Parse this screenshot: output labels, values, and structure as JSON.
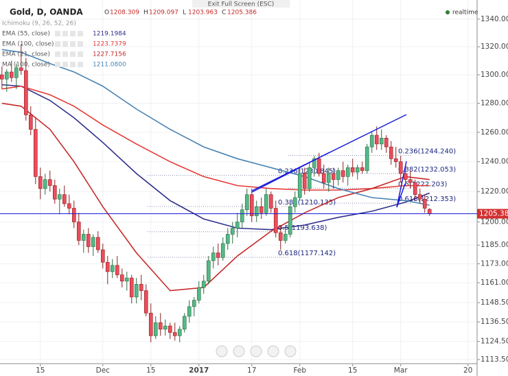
{
  "chart_data": {
    "type": "candlestick",
    "log": true,
    "grid": true,
    "title": "Gold, D, OANDA",
    "ohlc_letters": [
      "O",
      "H",
      "L",
      "C"
    ],
    "fullscreen_hint": "Exit Full Screen (ESC)",
    "status": "realtime",
    "indicator": "Ichimoku (9, 26, 52, 26)",
    "up_color": "#53b987",
    "down_color": "#eb4d5c",
    "ylim": [
      1111,
      1354
    ],
    "xlim": [
      -0.4,
      98.9
    ],
    "yticks": [
      {
        "value": 1340,
        "label": "1340.000"
      },
      {
        "value": 1320,
        "label": "1320.000"
      },
      {
        "value": 1300,
        "label": "1300.000"
      },
      {
        "value": 1280,
        "label": "1280.000"
      },
      {
        "value": 1260,
        "label": "1260.000"
      },
      {
        "value": 1240,
        "label": "1240.000"
      },
      {
        "value": 1220,
        "label": "1220.000"
      },
      {
        "value": 1200,
        "label": "1200.000"
      },
      {
        "value": 1185,
        "label": "1185.000"
      },
      {
        "value": 1173,
        "label": "1173.000"
      },
      {
        "value": 1161,
        "label": "1161.000"
      },
      {
        "value": 1148.5,
        "label": "1148.500"
      },
      {
        "value": 1136.5,
        "label": "1136.500"
      },
      {
        "value": 1124.5,
        "label": "1124.500"
      },
      {
        "value": 1113.5,
        "label": "1113.500"
      }
    ],
    "xticks": [
      {
        "value": 8,
        "label": "15"
      },
      {
        "value": 21,
        "label": "Dec"
      },
      {
        "value": 31,
        "label": "15"
      },
      {
        "value": 41,
        "label": "2017"
      },
      {
        "value": 52,
        "label": "17"
      },
      {
        "value": 62,
        "label": "Feb"
      },
      {
        "value": 73,
        "label": "15"
      },
      {
        "value": 83,
        "label": "Mar"
      },
      {
        "value": 97,
        "label": "20"
      }
    ],
    "ohlc": [
      [
        1300,
        1306,
        1290,
        1297
      ],
      [
        1297,
        1304,
        1288,
        1302
      ],
      [
        1302,
        1310,
        1295,
        1298
      ],
      [
        1298,
        1308,
        1290,
        1305
      ],
      [
        1305,
        1322,
        1300,
        1303
      ],
      [
        1303,
        1312,
        1268,
        1272
      ],
      [
        1272,
        1278,
        1258,
        1262
      ],
      [
        1262,
        1270,
        1225,
        1230
      ],
      [
        1230,
        1236,
        1215,
        1222
      ],
      [
        1222,
        1232,
        1218,
        1228
      ],
      [
        1228,
        1234,
        1220,
        1224
      ],
      [
        1224,
        1228,
        1212,
        1215
      ],
      [
        1215,
        1222,
        1205,
        1218
      ],
      [
        1218,
        1224,
        1210,
        1212
      ],
      [
        1212,
        1218,
        1205,
        1209
      ],
      [
        1209,
        1214,
        1196,
        1200
      ],
      [
        1200,
        1206,
        1185,
        1188
      ],
      [
        1188,
        1195,
        1180,
        1192
      ],
      [
        1192,
        1196,
        1180,
        1184
      ],
      [
        1184,
        1192,
        1178,
        1190
      ],
      [
        1190,
        1194,
        1180,
        1182
      ],
      [
        1182,
        1186,
        1170,
        1174
      ],
      [
        1174,
        1178,
        1160,
        1168
      ],
      [
        1168,
        1176,
        1164,
        1172
      ],
      [
        1172,
        1178,
        1164,
        1166
      ],
      [
        1166,
        1170,
        1158,
        1162
      ],
      [
        1162,
        1168,
        1156,
        1164
      ],
      [
        1164,
        1166,
        1148,
        1152
      ],
      [
        1152,
        1164,
        1148,
        1160
      ],
      [
        1160,
        1166,
        1150,
        1156
      ],
      [
        1156,
        1160,
        1140,
        1142
      ],
      [
        1142,
        1148,
        1124,
        1128
      ],
      [
        1128,
        1140,
        1126,
        1136
      ],
      [
        1136,
        1142,
        1128,
        1132
      ],
      [
        1132,
        1138,
        1128,
        1134
      ],
      [
        1134,
        1136,
        1126,
        1130
      ],
      [
        1130,
        1136,
        1125,
        1128
      ],
      [
        1128,
        1134,
        1124,
        1132
      ],
      [
        1132,
        1142,
        1130,
        1140
      ],
      [
        1140,
        1150,
        1136,
        1146
      ],
      [
        1146,
        1152,
        1140,
        1150
      ],
      [
        1150,
        1162,
        1148,
        1158
      ],
      [
        1158,
        1166,
        1154,
        1162
      ],
      [
        1162,
        1178,
        1160,
        1175
      ],
      [
        1175,
        1184,
        1170,
        1180
      ],
      [
        1180,
        1186,
        1172,
        1177
      ],
      [
        1177,
        1190,
        1175,
        1186
      ],
      [
        1186,
        1196,
        1182,
        1192
      ],
      [
        1192,
        1200,
        1186,
        1196
      ],
      [
        1196,
        1206,
        1190,
        1200
      ],
      [
        1200,
        1212,
        1196,
        1208
      ],
      [
        1208,
        1222,
        1204,
        1218
      ],
      [
        1218,
        1222,
        1200,
        1204
      ],
      [
        1204,
        1214,
        1200,
        1210
      ],
      [
        1210,
        1216,
        1202,
        1206
      ],
      [
        1206,
        1222,
        1204,
        1218
      ],
      [
        1218,
        1220,
        1206,
        1209
      ],
      [
        1209,
        1214,
        1190,
        1193
      ],
      [
        1193,
        1198,
        1182,
        1188
      ],
      [
        1188,
        1196,
        1186,
        1192
      ],
      [
        1192,
        1212,
        1190,
        1210
      ],
      [
        1210,
        1220,
        1206,
        1216
      ],
      [
        1216,
        1236,
        1214,
        1232
      ],
      [
        1232,
        1236,
        1218,
        1222
      ],
      [
        1222,
        1240,
        1220,
        1236
      ],
      [
        1236,
        1244,
        1230,
        1242
      ],
      [
        1242,
        1246,
        1230,
        1232
      ],
      [
        1232,
        1238,
        1222,
        1226
      ],
      [
        1226,
        1236,
        1220,
        1232
      ],
      [
        1232,
        1236,
        1222,
        1228
      ],
      [
        1228,
        1236,
        1224,
        1234
      ],
      [
        1234,
        1240,
        1226,
        1230
      ],
      [
        1230,
        1238,
        1224,
        1236
      ],
      [
        1236,
        1242,
        1230,
        1233
      ],
      [
        1233,
        1238,
        1228,
        1236
      ],
      [
        1236,
        1240,
        1232,
        1234
      ],
      [
        1234,
        1252,
        1232,
        1250
      ],
      [
        1250,
        1260,
        1246,
        1258
      ],
      [
        1258,
        1264,
        1248,
        1252
      ],
      [
        1252,
        1262,
        1248,
        1256
      ],
      [
        1256,
        1258,
        1246,
        1250
      ],
      [
        1250,
        1254,
        1238,
        1242
      ],
      [
        1242,
        1250,
        1236,
        1240
      ],
      [
        1240,
        1244,
        1226,
        1232
      ],
      [
        1232,
        1238,
        1224,
        1228
      ],
      [
        1228,
        1234,
        1222,
        1226
      ],
      [
        1226,
        1228,
        1214,
        1218
      ],
      [
        1218,
        1222,
        1212,
        1215
      ],
      [
        1215,
        1218,
        1206,
        1209
      ],
      [
        1208.309,
        1209.097,
        1203.963,
        1205.386
      ]
    ],
    "series": [
      {
        "name": "EMA (55, close)",
        "color": "#2e2e8c",
        "last": 1219.1984,
        "x": [
          0,
          4,
          10,
          15,
          21,
          28,
          35,
          42,
          49,
          56,
          63,
          70,
          77,
          84,
          89
        ],
        "values": [
          1293,
          1292,
          1282,
          1270,
          1253,
          1232,
          1214,
          1202,
          1196,
          1195,
          1198,
          1203,
          1207,
          1213,
          1219
        ]
      },
      {
        "name": "EMA (100, close)",
        "color": "#e53935",
        "last": 1223.7379,
        "x": [
          0,
          4,
          10,
          15,
          21,
          28,
          35,
          42,
          49,
          56,
          63,
          70,
          77,
          84,
          89
        ],
        "values": [
          1290,
          1292,
          1286,
          1278,
          1265,
          1252,
          1240,
          1230,
          1224,
          1222,
          1221,
          1221,
          1222,
          1224,
          1224
        ]
      },
      {
        "name": "EMA (21, close)",
        "color": "#c62828",
        "last": 1227.7156,
        "x": [
          0,
          4,
          10,
          15,
          21,
          28,
          35,
          42,
          49,
          56,
          63,
          70,
          77,
          84,
          89
        ],
        "values": [
          1280,
          1278,
          1262,
          1240,
          1210,
          1180,
          1156,
          1158,
          1178,
          1194,
          1206,
          1216,
          1222,
          1230,
          1228
        ]
      },
      {
        "name": "MA (100, close)",
        "color": "#4682b4",
        "last": {
          "value": 1211.08,
          "label": "1211.0800"
        },
        "x": [
          0,
          4,
          10,
          15,
          21,
          28,
          35,
          42,
          49,
          56,
          63,
          70,
          77,
          84,
          89
        ],
        "values": [
          1318,
          1316,
          1308,
          1302,
          1292,
          1276,
          1262,
          1250,
          1242,
          1236,
          1230,
          1222,
          1216,
          1214,
          1211
        ]
      }
    ],
    "fib_left": [
      {
        "label": "0.236(1230.845)",
        "value": 1230.845
      },
      {
        "label": "0.382(1210.135)",
        "value": 1210.135
      },
      {
        "label": "0.5(1193.638)",
        "value": 1193.638
      },
      {
        "label": "0.618(1177.142)",
        "value": 1177.142
      }
    ],
    "fib_right": [
      {
        "label": "0.236(1244.240)",
        "value": 1244.24
      },
      {
        "label": "0.382(1232.053)",
        "value": 1232.053
      },
      {
        "label": "0.5(1222.203)",
        "value": 1222.203
      },
      {
        "label": "0.618(1212.353)",
        "value": 1212.353
      }
    ]
  }
}
